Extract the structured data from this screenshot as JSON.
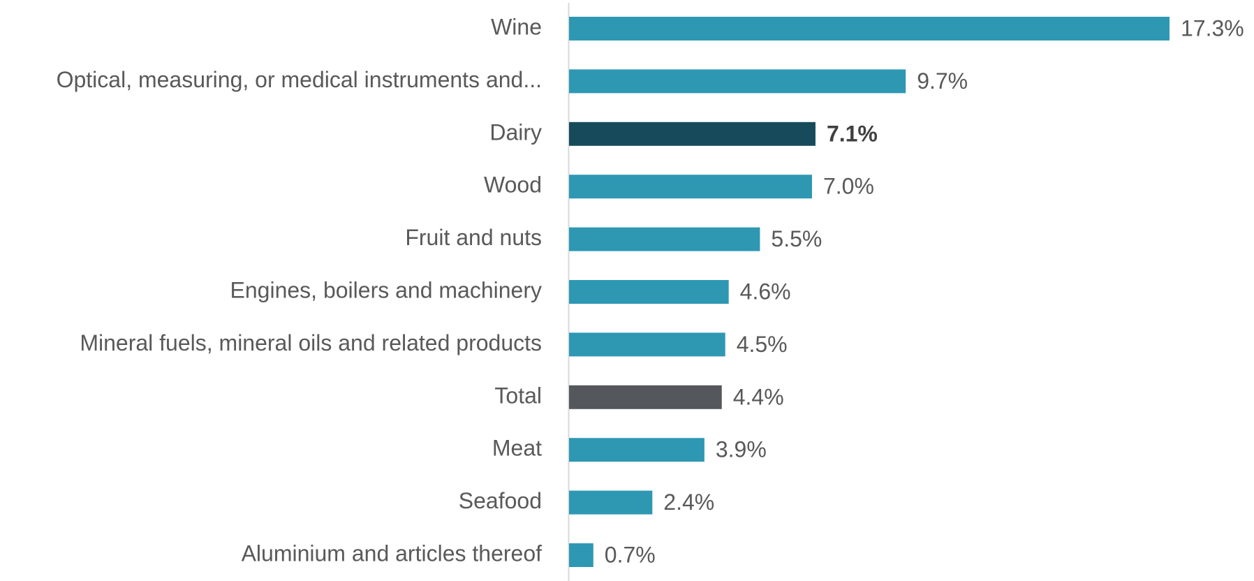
{
  "chart_data": {
    "type": "bar",
    "orientation": "horizontal",
    "categories": [
      "Wine",
      "Optical, measuring, or medical instruments and...",
      "Dairy",
      "Wood",
      "Fruit and nuts",
      "Engines, boilers and machinery",
      "Mineral fuels, mineral oils and related products",
      "Total",
      "Meat",
      "Seafood",
      "Aluminium and articles thereof"
    ],
    "values": [
      17.3,
      9.7,
      7.1,
      7.0,
      5.5,
      4.6,
      4.5,
      4.4,
      3.9,
      2.4,
      0.7
    ],
    "value_labels": [
      "17.3%",
      "9.7%",
      "7.1%",
      "7.0%",
      "5.5%",
      "4.6%",
      "4.5%",
      "4.4%",
      "3.9%",
      "2.4%",
      "0.7%"
    ],
    "colors": [
      "#2e98b3",
      "#2e98b3",
      "#174b5b",
      "#2e98b3",
      "#2e98b3",
      "#2e98b3",
      "#2e98b3",
      "#54585c",
      "#2e98b3",
      "#2e98b3",
      "#2e98b3"
    ],
    "bold_indices": [
      2
    ],
    "xlim": [
      0,
      17.3
    ]
  }
}
